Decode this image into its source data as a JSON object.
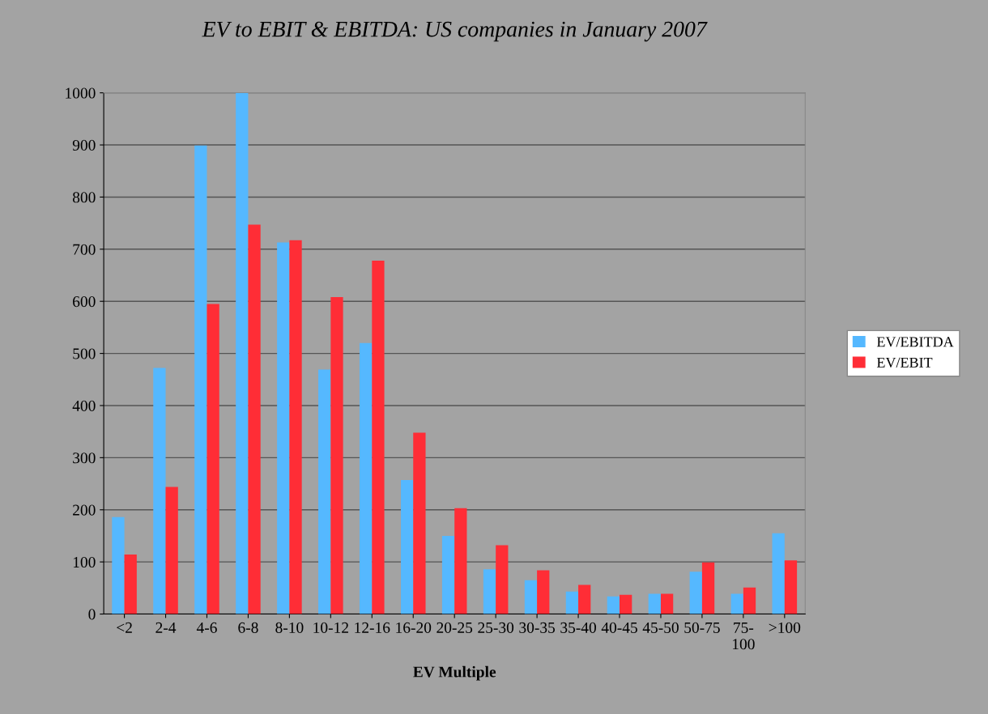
{
  "chart_data": {
    "type": "bar",
    "title": "EV to EBIT & EBITDA: US companies in January 2007",
    "xlabel": "EV Multiple",
    "categories": [
      "<2",
      "2-4",
      "4-6",
      "6-8",
      "8-10",
      "10-12",
      "12-16",
      "16-20",
      "20-25",
      "25-30",
      "30-35",
      "35-40",
      "40-45",
      "45-50",
      "50-75",
      "75-\n100",
      ">100"
    ],
    "series": [
      {
        "name": "EV/EBITDA",
        "color": "#55b8ff",
        "values": [
          186,
          472,
          899,
          1000,
          713,
          469,
          520,
          257,
          150,
          86,
          65,
          43,
          34,
          39,
          81,
          39,
          155
        ]
      },
      {
        "name": "EV/EBIT",
        "color": "#ff2d36",
        "values": [
          114,
          244,
          595,
          747,
          717,
          608,
          678,
          348,
          203,
          132,
          84,
          56,
          37,
          39,
          99,
          51,
          103
        ]
      }
    ],
    "ylim": [
      0,
      1000
    ],
    "yticks": [
      0,
      100,
      200,
      300,
      400,
      500,
      600,
      700,
      800,
      900,
      1000
    ],
    "grid": "y",
    "legend": "right"
  }
}
